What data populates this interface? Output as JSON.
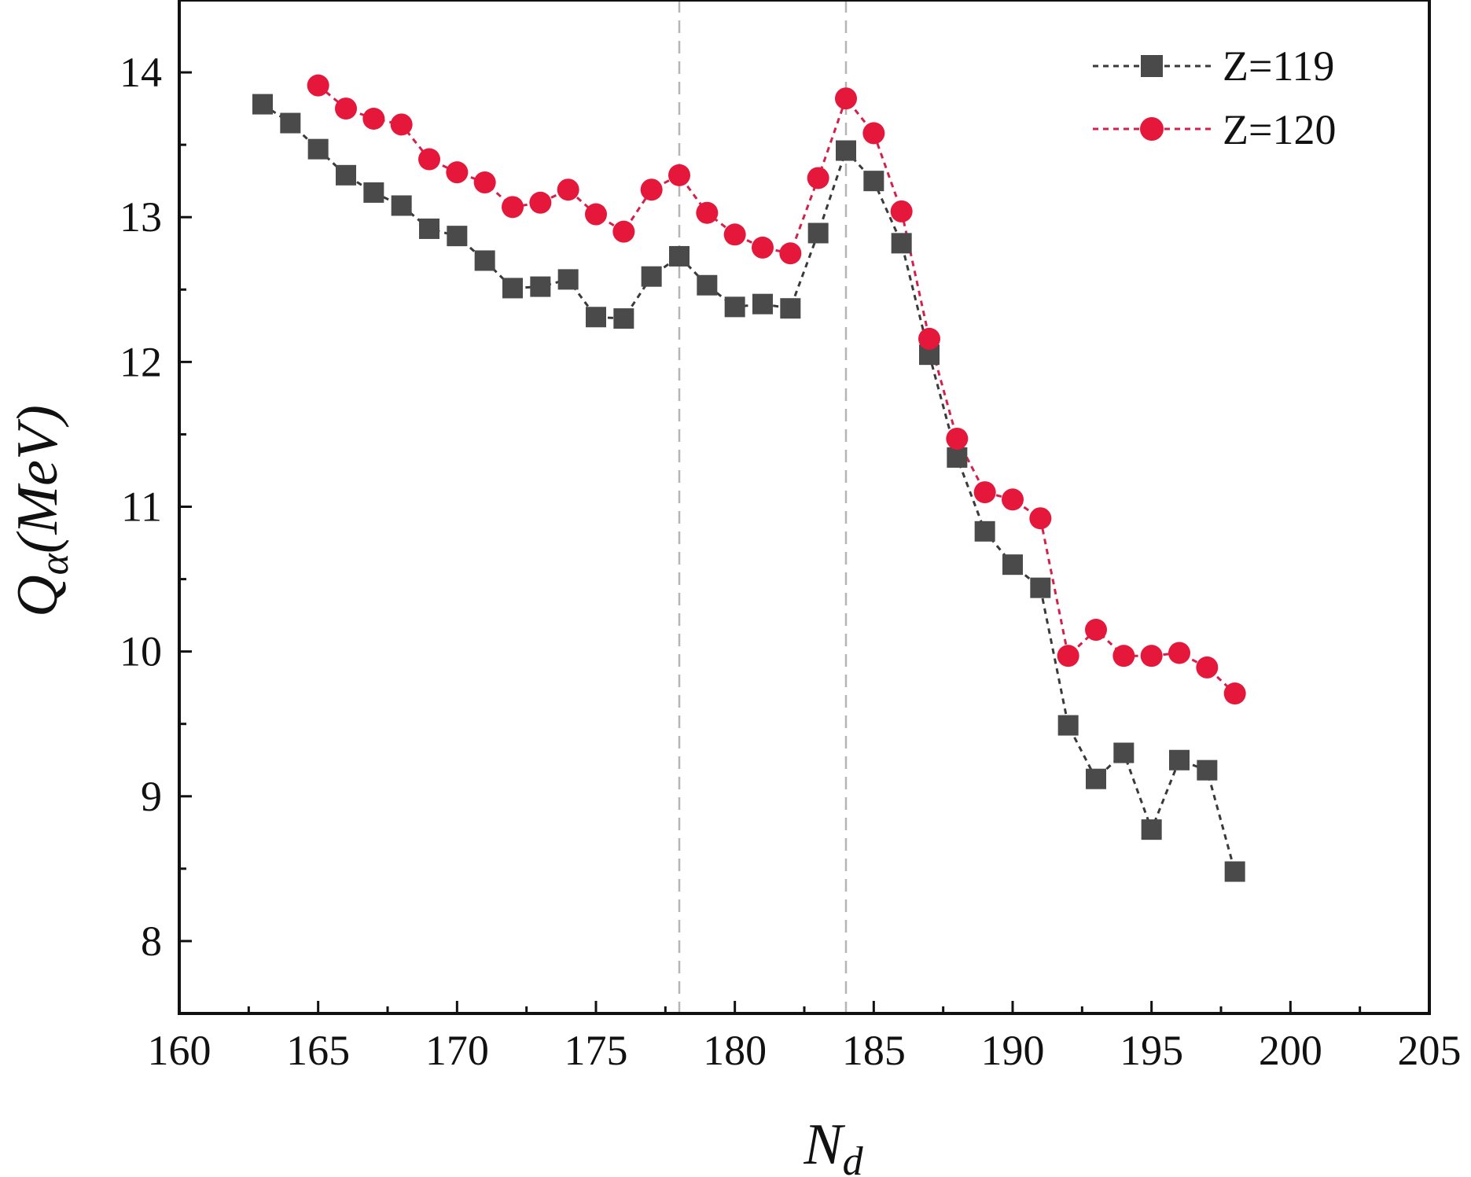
{
  "chart_data": {
    "type": "scatter",
    "xlabel": "N",
    "xlabel_sub": "d",
    "ylabel": "Q",
    "ylabel_sub": "α",
    "ylabel_unit": "(MeV)",
    "xlim": [
      160,
      205
    ],
    "ylim": [
      7.5,
      14.5
    ],
    "x_ticks": [
      160,
      165,
      170,
      175,
      180,
      185,
      190,
      195,
      200,
      205
    ],
    "y_ticks": [
      8,
      9,
      10,
      11,
      12,
      13,
      14
    ],
    "x_minor_step": 2.5,
    "y_minor_step": 0.5,
    "grid": false,
    "reference_lines_x": [
      178,
      184
    ],
    "legend_position": "top-right",
    "series": [
      {
        "name": "Z=119",
        "marker": "square",
        "color": "#4a4a4a",
        "line_color": "#3a3a3a",
        "x": [
          163,
          164,
          165,
          166,
          167,
          168,
          169,
          170,
          171,
          172,
          173,
          174,
          175,
          176,
          177,
          178,
          179,
          180,
          181,
          182,
          183,
          184,
          185,
          186,
          187,
          188,
          189,
          190,
          191,
          192,
          193,
          194,
          195,
          196,
          197,
          198
        ],
        "y": [
          13.78,
          13.65,
          13.47,
          13.29,
          13.17,
          13.08,
          12.92,
          12.87,
          12.7,
          12.51,
          12.52,
          12.57,
          12.31,
          12.3,
          12.59,
          12.73,
          12.53,
          12.38,
          12.4,
          12.37,
          12.89,
          13.46,
          13.25,
          12.82,
          12.05,
          11.34,
          10.83,
          10.6,
          10.44,
          9.49,
          9.12,
          9.3,
          8.77,
          9.25,
          9.18,
          8.48
        ]
      },
      {
        "name": "Z=120",
        "marker": "circle",
        "color": "#e5173a",
        "line_color": "#d4204a",
        "x": [
          165,
          166,
          167,
          168,
          169,
          170,
          171,
          172,
          173,
          174,
          175,
          176,
          177,
          178,
          179,
          180,
          181,
          182,
          183,
          184,
          185,
          186,
          187,
          188,
          189,
          190,
          191,
          192,
          193,
          194,
          195,
          196,
          197,
          198
        ],
        "y": [
          13.91,
          13.75,
          13.68,
          13.64,
          13.4,
          13.31,
          13.24,
          13.07,
          13.1,
          13.19,
          13.02,
          12.9,
          13.19,
          13.29,
          13.03,
          12.88,
          12.79,
          12.75,
          13.27,
          13.82,
          13.58,
          13.04,
          12.16,
          11.47,
          11.1,
          11.05,
          10.92,
          9.97,
          10.15,
          9.97,
          9.97,
          9.99,
          9.89,
          9.71
        ]
      }
    ]
  }
}
